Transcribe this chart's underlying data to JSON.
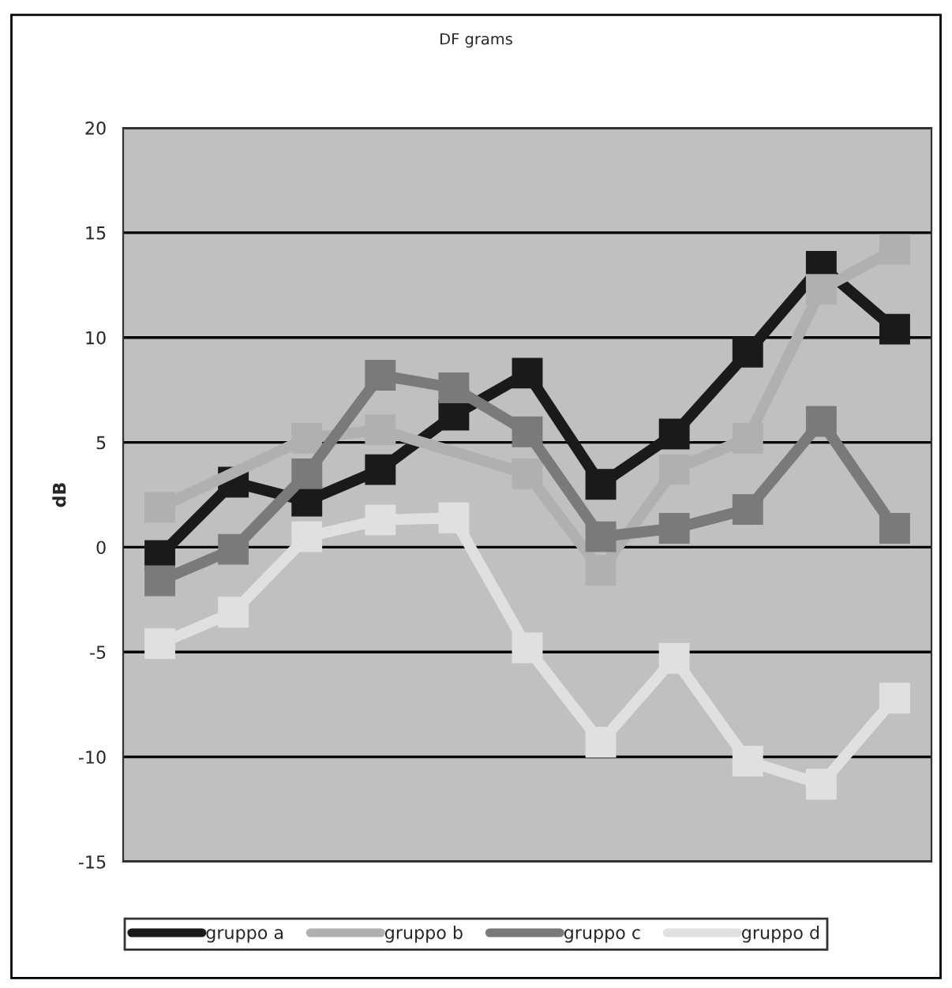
{
  "chart_data": {
    "type": "line",
    "title": "DF grams",
    "ylabel": "dB",
    "categories": [
      null,
      null,
      null,
      null,
      null,
      null,
      null,
      null,
      null,
      null,
      null
    ],
    "series": [
      {
        "name": "gruppo a",
        "color": "#1a1a1a",
        "values": [
          -0.4,
          3.1,
          2.2,
          3.7,
          6.3,
          8.3,
          3.0,
          5.4,
          9.3,
          13.4,
          10.4
        ]
      },
      {
        "name": "gruppo b",
        "color": "#b0b0b0",
        "values": [
          1.9,
          null,
          5.2,
          5.6,
          null,
          3.5,
          -1.1,
          3.7,
          5.2,
          12.3,
          14.2
        ]
      },
      {
        "name": "gruppo c",
        "color": "#7a7a7a",
        "values": [
          -1.6,
          -0.1,
          3.5,
          8.2,
          7.6,
          5.5,
          0.5,
          0.9,
          1.8,
          6.0,
          0.9
        ]
      },
      {
        "name": "gruppo d",
        "color": "#e0e0e0",
        "values": [
          -4.6,
          -3.1,
          0.5,
          1.3,
          1.4,
          -4.8,
          -9.3,
          -5.3,
          -10.2,
          -11.3,
          -7.2
        ]
      }
    ],
    "ylim": [
      -15,
      20
    ],
    "yticks": [
      -15,
      -10,
      -5,
      0,
      5,
      10,
      15,
      20
    ],
    "grid": "y",
    "legend": "bottom",
    "marker": "square",
    "line_style": "solid"
  }
}
